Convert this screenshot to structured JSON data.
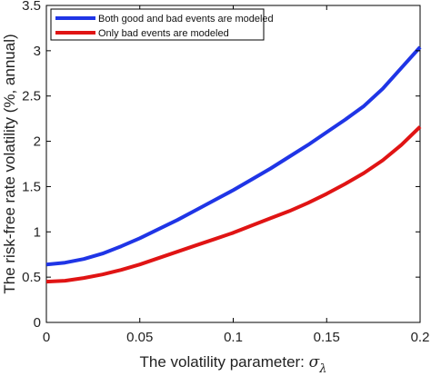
{
  "chart_data": {
    "type": "line",
    "xlabel": "The volatility parameter: ",
    "xlabel_symbol": "σ",
    "xlabel_subscript": "λ",
    "ylabel": "The risk-free rate volatility (%, annual)",
    "xlim": [
      0,
      0.2
    ],
    "ylim": [
      0,
      3.5
    ],
    "xticks": [
      0,
      0.05,
      0.1,
      0.15,
      0.2
    ],
    "xtick_labels": [
      "0",
      "0.05",
      "0.1",
      "0.15",
      "0.2"
    ],
    "yticks": [
      0,
      0.5,
      1,
      1.5,
      2,
      2.5,
      3,
      3.5
    ],
    "ytick_labels": [
      "0",
      "0.5",
      "1",
      "1.5",
      "2",
      "2.5",
      "3",
      "3.5"
    ],
    "grid": false,
    "legend_position": "top-left",
    "series": [
      {
        "name": "Both good and bad events are modeled",
        "color": "#1f35e6",
        "x": [
          0,
          0.01,
          0.02,
          0.03,
          0.04,
          0.05,
          0.06,
          0.07,
          0.08,
          0.09,
          0.1,
          0.11,
          0.12,
          0.13,
          0.14,
          0.15,
          0.16,
          0.17,
          0.18,
          0.19,
          0.2
        ],
        "y": [
          0.64,
          0.66,
          0.7,
          0.76,
          0.84,
          0.93,
          1.03,
          1.13,
          1.24,
          1.35,
          1.46,
          1.58,
          1.7,
          1.83,
          1.96,
          2.1,
          2.24,
          2.39,
          2.58,
          2.81,
          3.04
        ]
      },
      {
        "name": "Only bad events are modeled",
        "color": "#e01414",
        "x": [
          0,
          0.01,
          0.02,
          0.03,
          0.04,
          0.05,
          0.06,
          0.07,
          0.08,
          0.09,
          0.1,
          0.11,
          0.12,
          0.13,
          0.14,
          0.15,
          0.16,
          0.17,
          0.18,
          0.19,
          0.2
        ],
        "y": [
          0.45,
          0.46,
          0.49,
          0.53,
          0.58,
          0.64,
          0.71,
          0.78,
          0.85,
          0.92,
          0.99,
          1.07,
          1.15,
          1.23,
          1.32,
          1.42,
          1.53,
          1.65,
          1.79,
          1.96,
          2.16
        ]
      }
    ]
  }
}
